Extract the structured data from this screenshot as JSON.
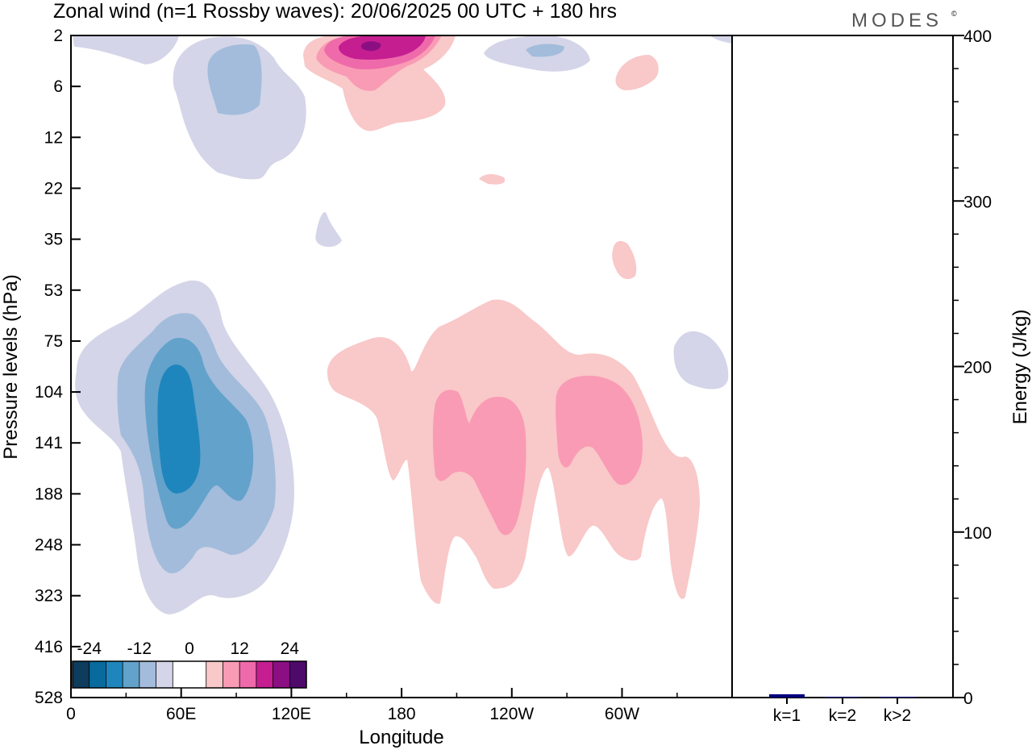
{
  "title": "Zonal wind (n=1 Rossby waves):  20/06/2025  00 UTC  + 180 hrs",
  "brand": "MODES",
  "brand_mark": "©",
  "chart_data": [
    {
      "type": "heatmap",
      "xlabel": "Longitude",
      "ylabel": "Pressure levels (hPa)",
      "x_ticks": [
        "0",
        "60E",
        "120E",
        "180",
        "120W",
        "60W"
      ],
      "y_ticks": [
        "2",
        "6",
        "12",
        "22",
        "35",
        "53",
        "75",
        "104",
        "141",
        "188",
        "248",
        "323",
        "416",
        "528"
      ],
      "colorbar": {
        "labels": [
          "-24",
          "-12",
          "0",
          "12",
          "24"
        ],
        "colors": [
          "#0d3c5d",
          "#086a9d",
          "#1f86bd",
          "#63a2cb",
          "#a3bcdb",
          "#d4d5e8",
          "#ffffff",
          "#ffffff",
          "#f9c8c8",
          "#f99bb4",
          "#ef6aaa",
          "#c51e91",
          "#8b0f83",
          "#4e0a6a"
        ]
      },
      "regions": [
        {
          "level": -12,
          "color": "#a3bcdb",
          "note": "upper level near 60E-90E"
        },
        {
          "level": -20,
          "color": "#1f86bd",
          "note": "core near 60E, 104-188 hPa"
        },
        {
          "level": 20,
          "color": "#c51e91",
          "note": "upper level core near 165E, 2 hPa"
        },
        {
          "level": 8,
          "color": "#f99bb4",
          "note": "lobes near 140W and 80W, 104-248 hPa"
        }
      ]
    },
    {
      "type": "bar",
      "categories": [
        "k=1",
        "k=2",
        "k>2"
      ],
      "values": [
        2.0,
        0.5,
        0.5
      ],
      "ylabel": "Energy (J/kg)",
      "ylim": [
        0,
        400
      ],
      "y_ticks": [
        "0",
        "100",
        "200",
        "300",
        "400"
      ],
      "colors": [
        "#000080",
        "#000080",
        "#000080"
      ]
    }
  ]
}
